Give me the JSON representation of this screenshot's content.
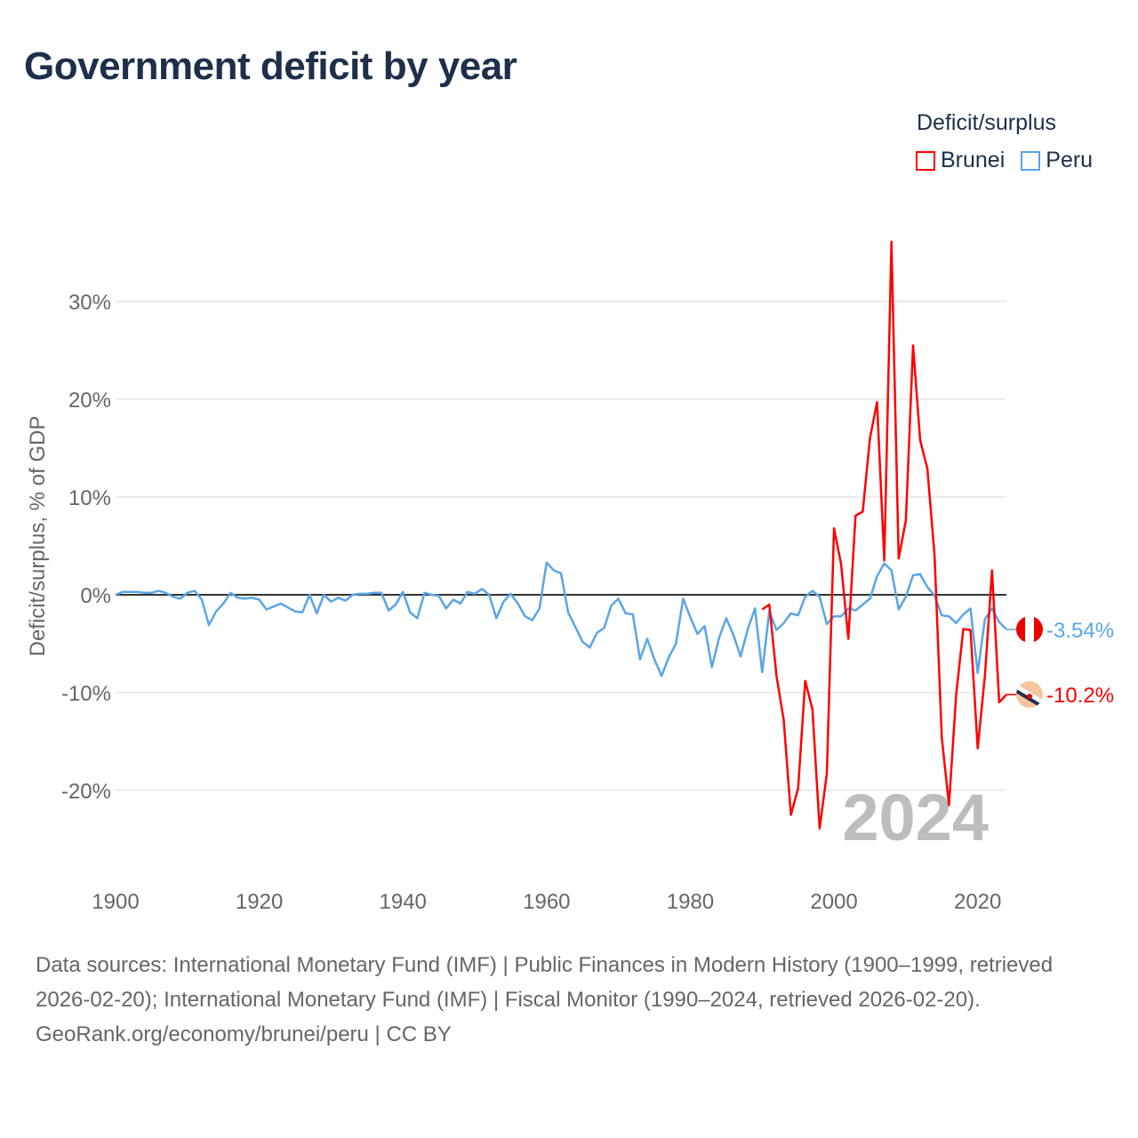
{
  "title": "Government deficit by year",
  "legend": {
    "title": "Deficit/surplus"
  },
  "footer": {
    "sources": "Data sources: International Monetary Fund (IMF) | Public Finances in Modern History (1900–1999, retrieved 2026-02-20); International Monetary Fund (IMF) | Fiscal Monitor (1990–2024, retrieved 2026-02-20).",
    "credit": "GeoRank.org/economy/brunei/peru | CC BY"
  },
  "chart_data": {
    "type": "line",
    "title": "Government deficit by year",
    "xlabel": "",
    "ylabel": "Deficit/surplus, % of GDP",
    "xlim": [
      1900,
      2024
    ],
    "ylim": [
      -27,
      37
    ],
    "xticks": [
      1900,
      1920,
      1940,
      1960,
      1980,
      2000,
      2020
    ],
    "yticks": [
      -20,
      -10,
      0,
      10,
      20,
      30
    ],
    "ytick_labels": [
      "-20%",
      "-10%",
      "0%",
      "10%",
      "20%",
      "30%"
    ],
    "grid": true,
    "legend_position": "top-right",
    "year_label": "2024",
    "series": [
      {
        "name": "Brunei",
        "color": "#ff0000",
        "end_label": "-10.2%",
        "flag_icon": "brunei-flag-icon",
        "start": 1990,
        "values": [
          -1.5,
          -1.0,
          -8.3,
          -12.8,
          -22.5,
          -19.8,
          -8.8,
          -11.7,
          -23.9,
          -18.3,
          6.8,
          3.1,
          -4.5,
          8.1,
          8.5,
          16.0,
          19.7,
          3.5,
          36.1,
          3.7,
          7.6,
          25.5,
          15.8,
          12.9,
          4.0,
          -14.6,
          -21.5,
          -10.3,
          -3.5,
          -3.6,
          -15.7,
          -8.3,
          2.5,
          -11.0,
          -10.2
        ]
      },
      {
        "name": "Peru",
        "color": "#5aa5e6",
        "end_label": "-3.54%",
        "flag_icon": "peru-flag-icon",
        "start": 1900,
        "values": [
          0,
          0.3,
          0.3,
          0.3,
          0.2,
          0.2,
          0.4,
          0.2,
          -0.2,
          -0.4,
          0.2,
          0.4,
          -0.5,
          -3.1,
          -1.7,
          -0.9,
          0.2,
          -0.3,
          -0.4,
          -0.3,
          -0.5,
          -1.5,
          -1.2,
          -0.9,
          -1.3,
          -1.7,
          -1.8,
          0.0,
          -1.9,
          0.0,
          -0.7,
          -0.3,
          -0.6,
          0.0,
          0.1,
          0.1,
          0.2,
          0.2,
          -1.6,
          -1.0,
          0.3,
          -1.8,
          -2.4,
          0.2,
          0.0,
          -0.1,
          -1.4,
          -0.5,
          -0.9,
          0.3,
          0.1,
          0.6,
          0.0,
          -2.4,
          -0.7,
          0.1,
          -0.9,
          -2.2,
          -2.6,
          -1.4,
          3.3,
          2.5,
          2.2,
          -1.8,
          -3.3,
          -4.8,
          -5.4,
          -3.9,
          -3.4,
          -1.1,
          -0.4,
          -1.9,
          -2.0,
          -6.6,
          -4.5,
          -6.6,
          -8.3,
          -6.4,
          -5.0,
          -0.4,
          -2.3,
          -4.0,
          -3.2,
          -7.4,
          -4.4,
          -2.4,
          -4.1,
          -6.3,
          -3.5,
          -1.4,
          -7.9,
          -1.7,
          -3.6,
          -2.9,
          -1.9,
          -2.1,
          -0.2,
          0.4,
          -0.2,
          -3.0,
          -2.2,
          -2.2,
          -1.4,
          -1.6,
          -1.0,
          -0.4,
          1.9,
          3.2,
          2.5,
          -1.5,
          -0.2,
          2.0,
          2.1,
          0.8,
          -0.1,
          -2.1,
          -2.2,
          -2.9,
          -2.0,
          -1.4,
          -8.0,
          -2.5,
          -1.4,
          -2.8,
          -3.54
        ]
      }
    ]
  }
}
